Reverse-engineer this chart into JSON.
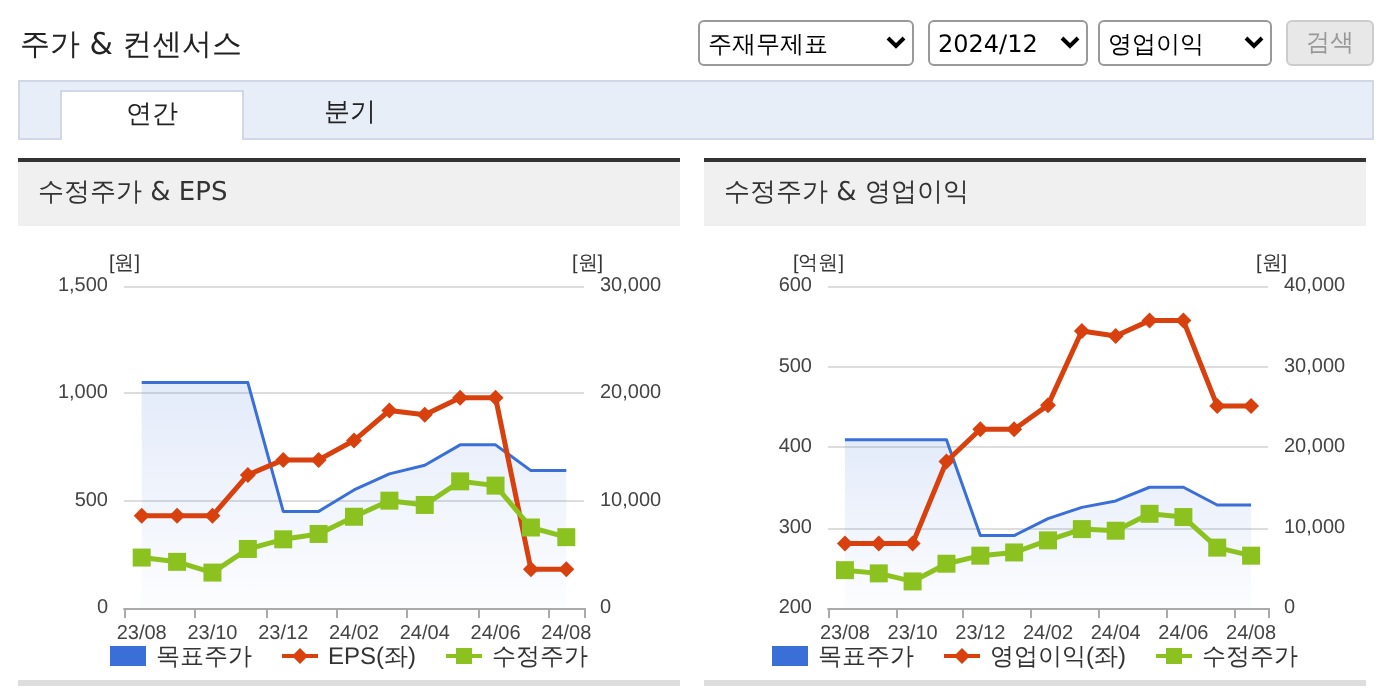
{
  "chart_data": [
    {
      "type": "line",
      "title": "수정주가 & EPS",
      "annotations": [
        "주가 & 컨센서스",
        "주재무제표",
        "2024/12",
        "영업이익",
        "검색",
        "연간",
        "분기"
      ],
      "categories": [
        "23/08",
        null,
        "23/10",
        null,
        "23/12",
        null,
        "24/02",
        null,
        "24/04",
        null,
        "24/06",
        null,
        "24/08"
      ],
      "ylabel": "[원]",
      "y2label": "[원]",
      "ylim": [
        0,
        1500
      ],
      "yticks": [
        0,
        500,
        {
          "value": 1000,
          "label": "1,000"
        },
        {
          "value": 1500,
          "label": "1,500"
        }
      ],
      "y2lim": [
        0,
        30000
      ],
      "y2ticks": [
        0,
        {
          "value": 10000,
          "label": "10,000"
        },
        {
          "value": 20000,
          "label": "20,000"
        },
        {
          "value": 30000,
          "label": "30,000"
        }
      ],
      "grid": "y",
      "legend": "bottom",
      "series": [
        {
          "name": "목표주가",
          "type": "area",
          "axis": "y2",
          "color": "#3a6fd8",
          "marker": "none",
          "values": [
            21000,
            21000,
            21000,
            21000,
            9000,
            9000,
            11000,
            12500,
            13300,
            15200,
            15200,
            12800,
            12800
          ]
        },
        {
          "name": "EPS(좌)",
          "color": "#d8400e",
          "marker": "diamond",
          "values": [
            430,
            430,
            430,
            620,
            690,
            690,
            780,
            920,
            900,
            980,
            980,
            180,
            180
          ]
        },
        {
          "name": "수정주가",
          "axis": "y2",
          "color": "#8cc21f",
          "marker": "square",
          "values": [
            4700,
            4300,
            3300,
            5500,
            6400,
            6900,
            8500,
            10000,
            9600,
            11800,
            11400,
            7500,
            6600
          ]
        }
      ]
    },
    {
      "type": "line",
      "title": "수정주가 & 영업이익",
      "categories": [
        "23/08",
        null,
        "23/10",
        null,
        "23/12",
        null,
        "24/02",
        null,
        "24/04",
        null,
        "24/06",
        null,
        "24/08"
      ],
      "ylabel": "[억원]",
      "y2label": "[원]",
      "ylim": [
        200,
        600
      ],
      "yticks": [
        200,
        300,
        400,
        500,
        600
      ],
      "y2lim": [
        0,
        40000
      ],
      "y2ticks": [
        0,
        {
          "value": 10000,
          "label": "10,000"
        },
        {
          "value": 20000,
          "label": "20,000"
        },
        {
          "value": 30000,
          "label": "30,000"
        },
        {
          "value": 40000,
          "label": "40,000"
        }
      ],
      "grid": "y",
      "legend": "bottom",
      "series": [
        {
          "name": "목표주가",
          "type": "area",
          "axis": "y2",
          "color": "#3a6fd8",
          "marker": "none",
          "values": [
            20900,
            20900,
            20900,
            20900,
            9000,
            9000,
            11100,
            12500,
            13300,
            15000,
            15000,
            12800,
            12800
          ]
        },
        {
          "name": "영업이익(좌)",
          "color": "#d8400e",
          "marker": "diamond",
          "values": [
            280,
            280,
            280,
            382,
            422,
            422,
            452,
            544,
            538,
            557,
            557,
            451,
            451
          ]
        },
        {
          "name": "수정주가",
          "axis": "y2",
          "color": "#8cc21f",
          "marker": "square",
          "values": [
            4700,
            4300,
            3300,
            5500,
            6500,
            6900,
            8400,
            9800,
            9600,
            11700,
            11300,
            7500,
            6500
          ]
        }
      ]
    }
  ]
}
